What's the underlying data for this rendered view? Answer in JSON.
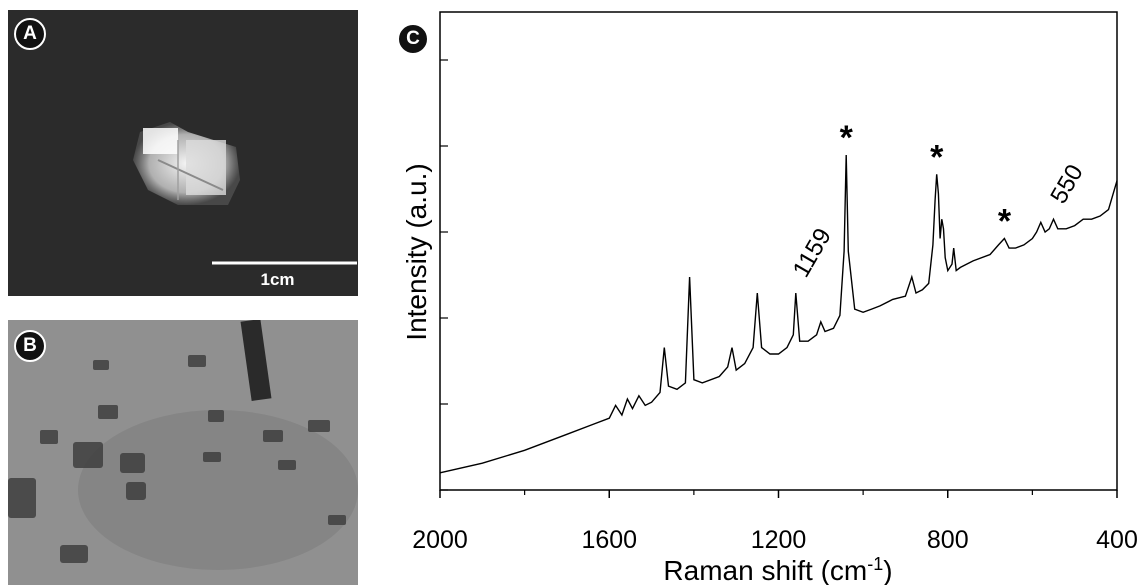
{
  "panels": {
    "a": {
      "label": "A",
      "scale_bar_label": "1cm"
    },
    "b": {
      "label": "B"
    },
    "c": {
      "label": "C"
    }
  },
  "chart_data": {
    "type": "line",
    "xlabel": "Raman shift (cm-1)",
    "ylabel": "Intensity (a.u.)",
    "x_axis_reversed": true,
    "xlim": [
      2000,
      400
    ],
    "xticks": [
      2000,
      1600,
      1200,
      800,
      400
    ],
    "yticks_labeled": false,
    "grid": false,
    "series": [
      {
        "x": [
          2000,
          1900,
          1800,
          1700,
          1640,
          1600,
          1585,
          1570,
          1557,
          1545,
          1530,
          1515,
          1500,
          1480,
          1470,
          1460,
          1440,
          1420,
          1410,
          1400,
          1380,
          1340,
          1320,
          1310,
          1300,
          1280,
          1260,
          1250,
          1240,
          1220,
          1200,
          1180,
          1165,
          1159,
          1150,
          1130,
          1110,
          1100,
          1090,
          1070,
          1055,
          1045,
          1040,
          1035,
          1020,
          1000,
          980,
          960,
          930,
          900,
          885,
          875,
          860,
          845,
          835,
          830,
          826,
          822,
          818,
          814,
          810,
          806,
          800,
          790,
          786,
          780,
          770,
          740,
          700,
          680,
          666,
          655,
          640,
          620,
          600,
          590,
          580,
          570,
          560,
          550,
          540,
          520,
          500,
          480,
          460,
          440,
          420,
          400
        ],
        "y": [
          0.01,
          0.04,
          0.08,
          0.13,
          0.16,
          0.18,
          0.22,
          0.19,
          0.24,
          0.21,
          0.25,
          0.22,
          0.23,
          0.26,
          0.4,
          0.28,
          0.27,
          0.29,
          0.62,
          0.3,
          0.29,
          0.31,
          0.34,
          0.4,
          0.33,
          0.35,
          0.4,
          0.57,
          0.4,
          0.38,
          0.38,
          0.4,
          0.44,
          0.57,
          0.42,
          0.42,
          0.44,
          0.48,
          0.45,
          0.46,
          0.5,
          0.7,
          1.0,
          0.7,
          0.52,
          0.51,
          0.52,
          0.53,
          0.55,
          0.56,
          0.62,
          0.57,
          0.58,
          0.6,
          0.72,
          0.86,
          0.94,
          0.88,
          0.74,
          0.8,
          0.77,
          0.68,
          0.64,
          0.66,
          0.71,
          0.64,
          0.65,
          0.67,
          0.69,
          0.72,
          0.74,
          0.71,
          0.71,
          0.72,
          0.74,
          0.76,
          0.79,
          0.76,
          0.77,
          0.8,
          0.77,
          0.77,
          0.78,
          0.8,
          0.8,
          0.81,
          0.83,
          0.92
        ]
      }
    ],
    "annotations": [
      {
        "text": "1159",
        "x": 1159
      },
      {
        "text": "550",
        "x": 550
      },
      {
        "text": "*",
        "x": 1040
      },
      {
        "text": "*",
        "x": 826
      },
      {
        "text": "*",
        "x": 666
      }
    ]
  }
}
